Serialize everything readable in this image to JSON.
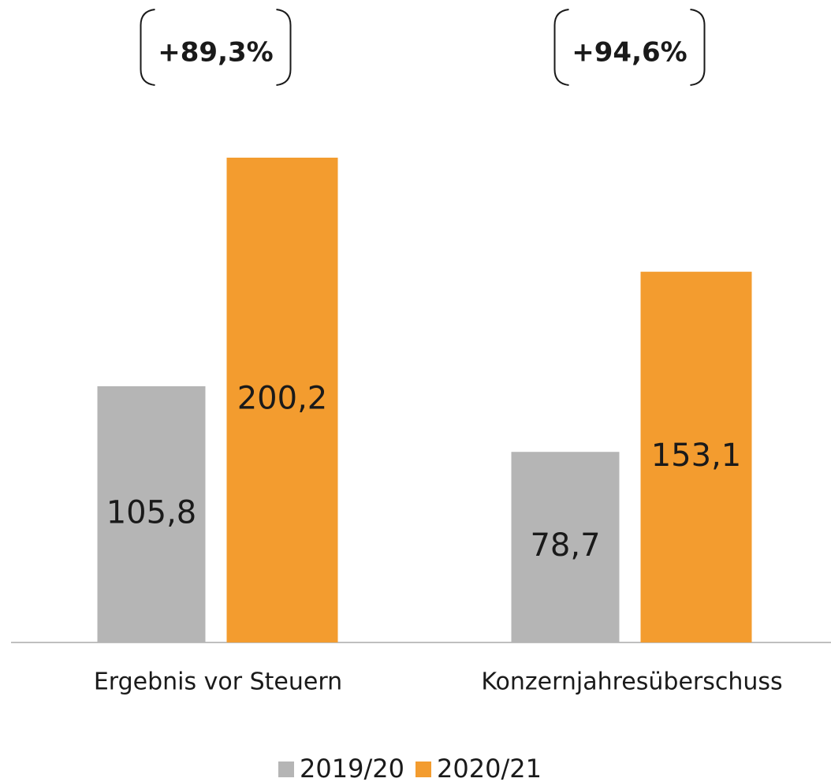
{
  "chart_data": {
    "type": "bar",
    "categories": [
      "Ergebnis vor Steuern",
      "Konzernjahresüberschuss"
    ],
    "series": [
      {
        "name": "2019/20",
        "color": "#b5b5b5",
        "values": [
          105.8,
          78.7
        ],
        "value_labels": [
          "105,8",
          "78,7"
        ]
      },
      {
        "name": "2020/21",
        "color": "#f39c2f",
        "values": [
          200.2,
          153.1
        ],
        "value_labels": [
          "200,2",
          "153,1"
        ]
      }
    ],
    "annotations": [
      "+89,3%",
      "+94,6%"
    ]
  }
}
